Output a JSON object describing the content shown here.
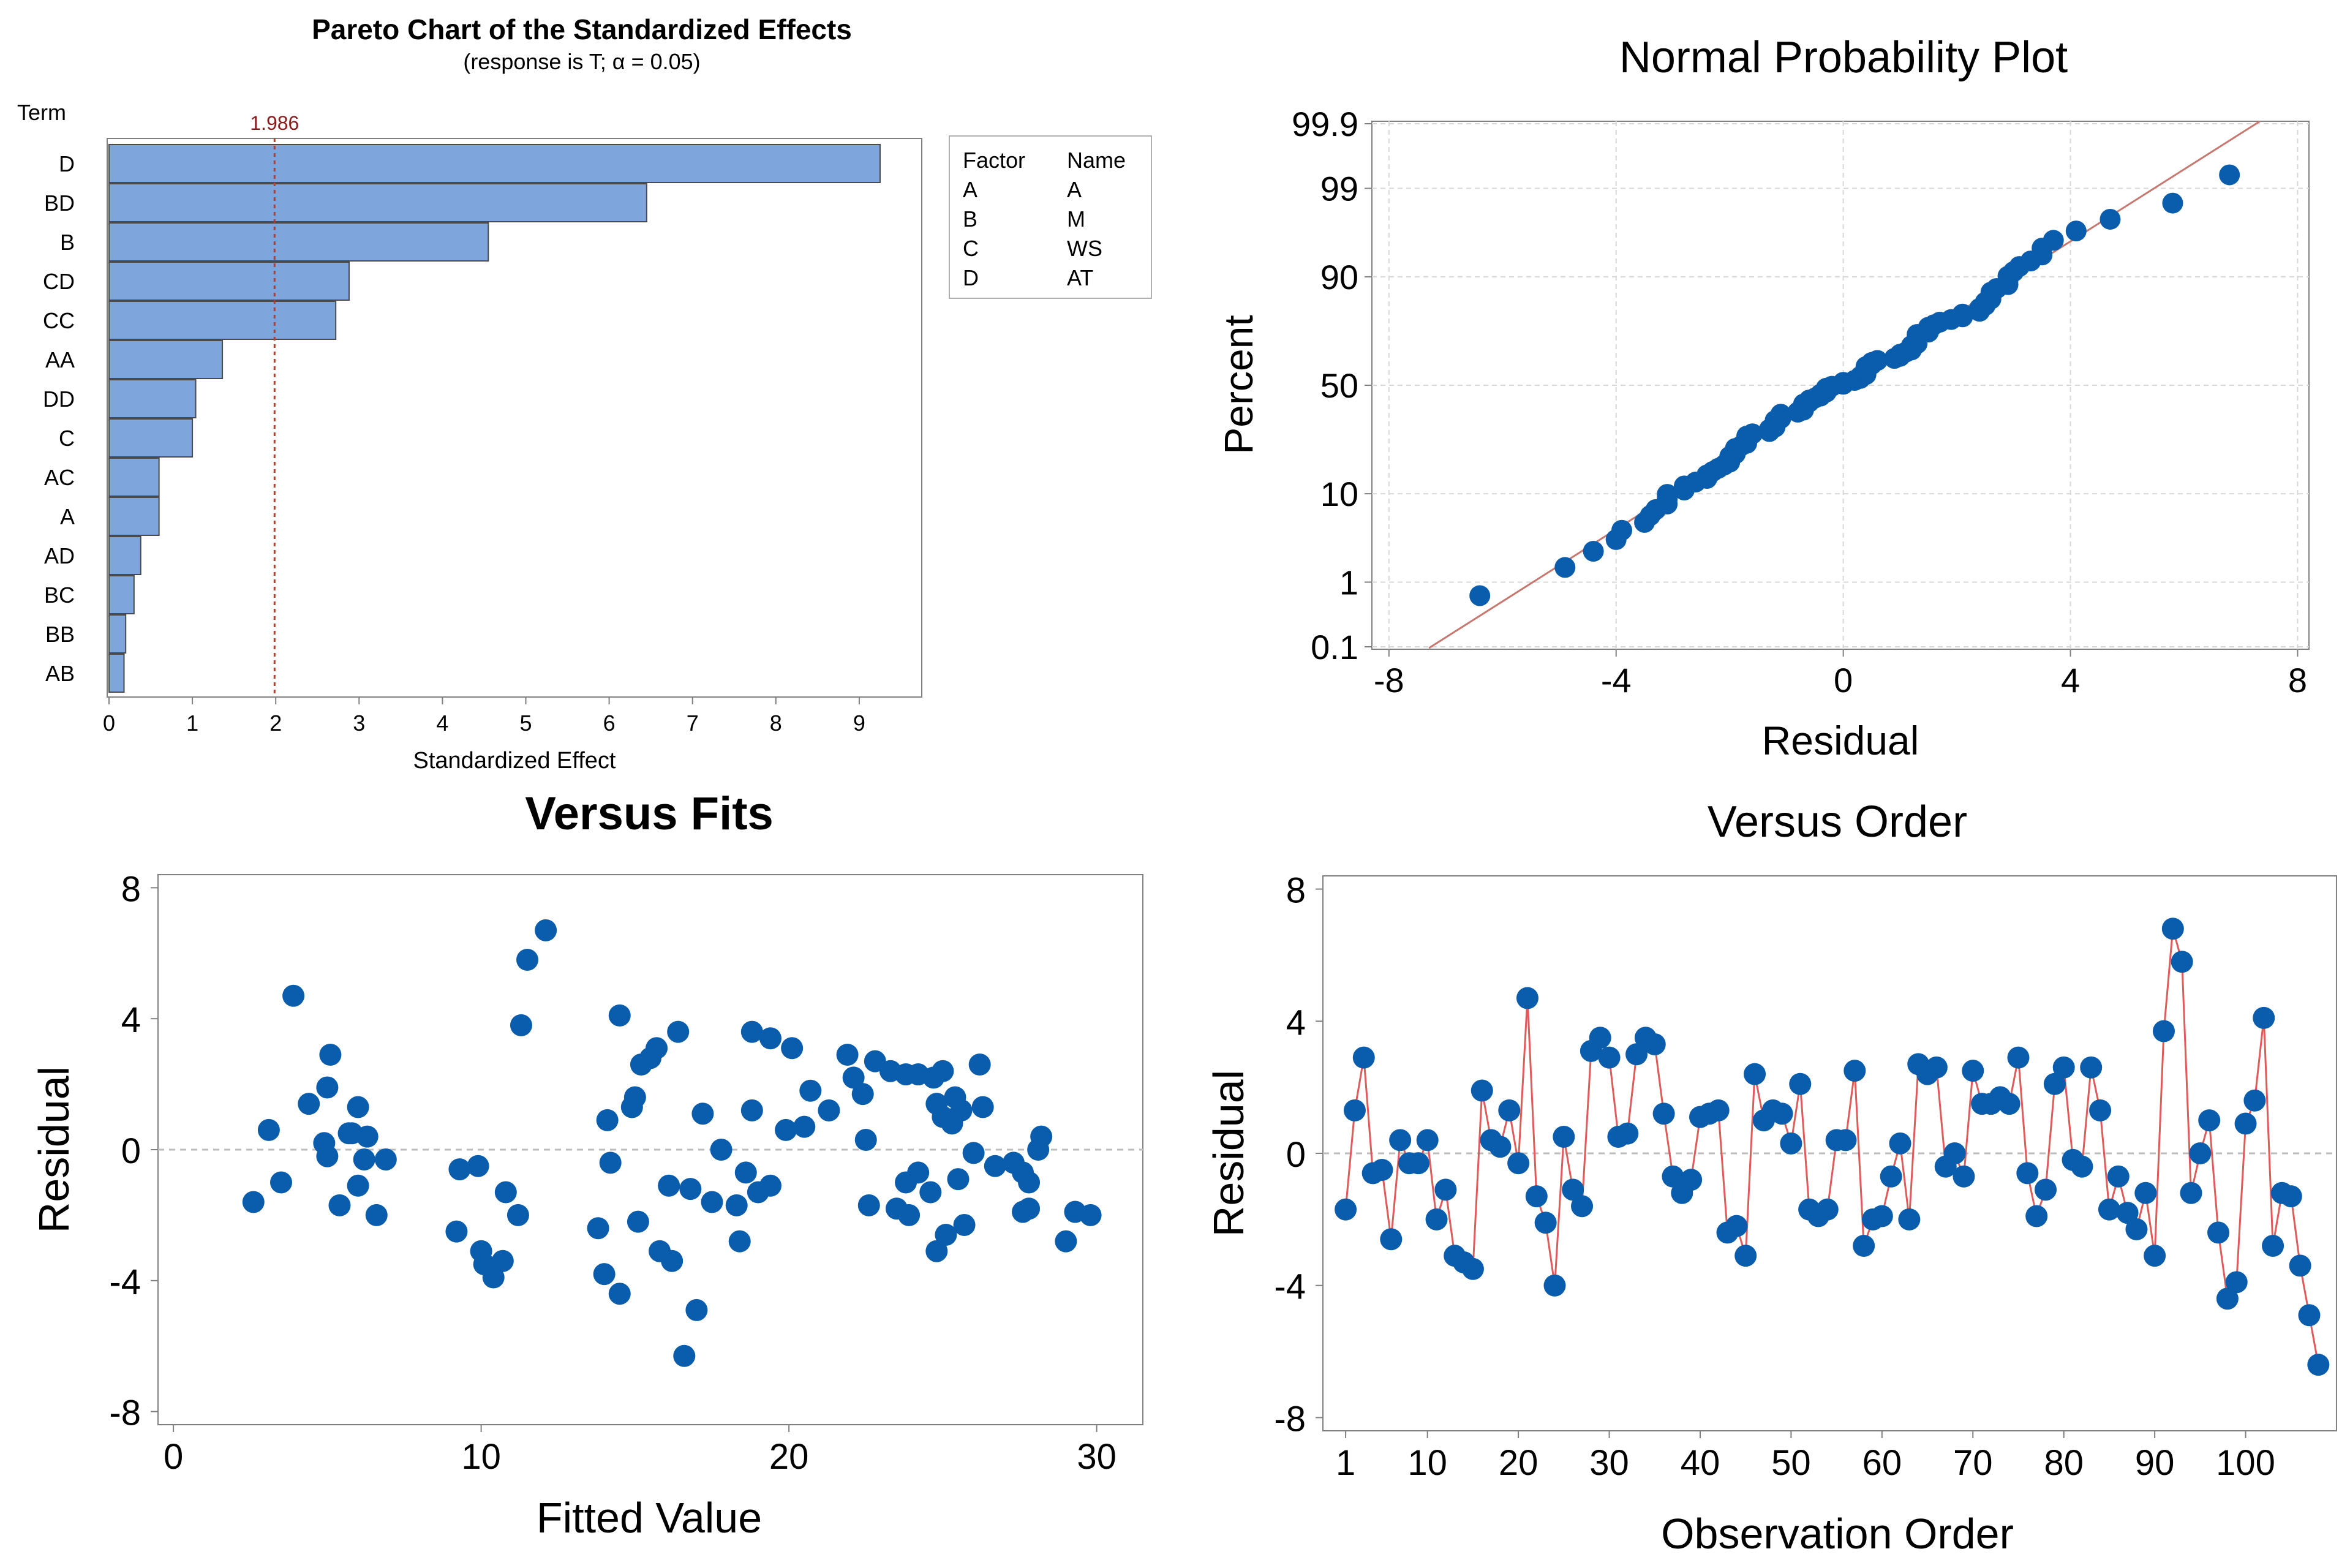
{
  "colors": {
    "bar_fill": "#7fa6dc",
    "bar_stroke": "#4a4a4a",
    "point": "#0a5cac",
    "ref_line": "#c0392b",
    "fit_line": "#c8776f",
    "connect_line": "#e05a5a",
    "grid": "#d8d8d8",
    "axis": "#808080",
    "text": "#000000",
    "ref_label": "#8b1a1a"
  },
  "chart_data": [
    {
      "type": "bar",
      "orientation": "horizontal",
      "title": "Pareto Chart of the Standardized Effects",
      "subtitle": "(response is T; α = 0.05)",
      "ylabel": "Term",
      "xlabel": "Standardized Effect",
      "categories": [
        "D",
        "BD",
        "B",
        "CD",
        "CC",
        "AA",
        "DD",
        "C",
        "AC",
        "A",
        "AD",
        "BC",
        "BB",
        "AB"
      ],
      "values": [
        9.25,
        6.45,
        4.55,
        2.88,
        2.72,
        1.36,
        1.04,
        1.0,
        0.6,
        0.6,
        0.38,
        0.3,
        0.2,
        0.18
      ],
      "xlim": [
        0,
        9.75
      ],
      "xticks": [
        0,
        1,
        2,
        3,
        4,
        5,
        6,
        7,
        8,
        9
      ],
      "reference_value": 1.986,
      "reference_label": "1.986",
      "legend": {
        "headers": [
          "Factor",
          "Name"
        ],
        "rows": [
          [
            "A",
            "A"
          ],
          [
            "B",
            "M"
          ],
          [
            "C",
            "WS"
          ],
          [
            "D",
            "AT"
          ]
        ]
      }
    },
    {
      "type": "scatter",
      "title": "Normal Probability Plot",
      "xlabel": "Residual",
      "ylabel": "Percent",
      "xlim": [
        -8.3,
        8.2
      ],
      "xticks": [
        -8,
        -4,
        0,
        4,
        8
      ],
      "yticks": [
        "0.1",
        "1",
        "10",
        "50",
        "90",
        "99",
        "99.9"
      ],
      "grid": true,
      "fit_line": true
    },
    {
      "type": "scatter",
      "title": "Versus Fits",
      "xlabel": "Fitted Value",
      "ylabel": "Residual",
      "xlim": [
        -0.5,
        31.5
      ],
      "ylim": [
        -8.4,
        8.4
      ],
      "xticks": [
        0,
        10,
        20,
        30
      ],
      "yticks": [
        -8,
        -4,
        0,
        4,
        8
      ],
      "reference_value": 0,
      "points": [
        [
          2.6,
          -1.6
        ],
        [
          3.1,
          0.6
        ],
        [
          3.5,
          -1.0
        ],
        [
          3.9,
          4.7
        ],
        [
          4.4,
          1.4
        ],
        [
          4.9,
          0.2
        ],
        [
          5.0,
          -0.2
        ],
        [
          5.0,
          1.9
        ],
        [
          5.1,
          2.9
        ],
        [
          5.4,
          -1.7
        ],
        [
          5.7,
          0.5
        ],
        [
          5.8,
          0.5
        ],
        [
          6.0,
          -1.1
        ],
        [
          6.0,
          1.3
        ],
        [
          6.2,
          -0.3
        ],
        [
          6.3,
          0.4
        ],
        [
          6.6,
          -2.0
        ],
        [
          6.9,
          -0.3
        ],
        [
          9.2,
          -2.5
        ],
        [
          9.3,
          -0.6
        ],
        [
          9.9,
          -0.5
        ],
        [
          10.0,
          -3.1
        ],
        [
          10.1,
          -3.5
        ],
        [
          10.4,
          -3.9
        ],
        [
          10.7,
          -3.4
        ],
        [
          10.8,
          -1.3
        ],
        [
          11.2,
          -2.0
        ],
        [
          11.3,
          3.8
        ],
        [
          11.5,
          5.8
        ],
        [
          12.1,
          6.7
        ],
        [
          13.8,
          -2.4
        ],
        [
          14.0,
          -3.8
        ],
        [
          14.1,
          0.9
        ],
        [
          14.2,
          -0.4
        ],
        [
          14.5,
          -4.4
        ],
        [
          14.5,
          4.1
        ],
        [
          14.9,
          1.3
        ],
        [
          15.0,
          1.6
        ],
        [
          15.1,
          -2.2
        ],
        [
          15.2,
          2.6
        ],
        [
          15.5,
          2.8
        ],
        [
          15.7,
          3.1
        ],
        [
          15.8,
          -3.1
        ],
        [
          16.1,
          -1.1
        ],
        [
          16.2,
          -3.4
        ],
        [
          16.4,
          3.6
        ],
        [
          16.6,
          -6.3
        ],
        [
          16.8,
          -1.2
        ],
        [
          17.0,
          -4.9
        ],
        [
          17.2,
          1.1
        ],
        [
          17.5,
          -1.6
        ],
        [
          17.8,
          0.0
        ],
        [
          18.3,
          -1.7
        ],
        [
          18.4,
          -2.8
        ],
        [
          18.6,
          -0.7
        ],
        [
          18.8,
          1.2
        ],
        [
          18.8,
          3.6
        ],
        [
          19.0,
          -1.3
        ],
        [
          19.4,
          3.4
        ],
        [
          19.4,
          -1.1
        ],
        [
          19.9,
          0.6
        ],
        [
          20.1,
          3.1
        ],
        [
          20.5,
          0.7
        ],
        [
          20.7,
          1.8
        ],
        [
          21.3,
          1.2
        ],
        [
          21.9,
          2.9
        ],
        [
          22.1,
          2.2
        ],
        [
          22.4,
          1.7
        ],
        [
          22.5,
          0.3
        ],
        [
          22.6,
          -1.7
        ],
        [
          22.8,
          2.7
        ],
        [
          23.3,
          2.4
        ],
        [
          23.5,
          -1.8
        ],
        [
          23.8,
          -1.0
        ],
        [
          23.8,
          2.3
        ],
        [
          23.9,
          -2.0
        ],
        [
          24.2,
          2.3
        ],
        [
          24.2,
          -0.7
        ],
        [
          24.6,
          -1.3
        ],
        [
          24.7,
          2.2
        ],
        [
          24.8,
          1.4
        ],
        [
          24.8,
          -3.1
        ],
        [
          25.0,
          2.4
        ],
        [
          25.0,
          1.0
        ],
        [
          25.1,
          -2.6
        ],
        [
          25.3,
          0.8
        ],
        [
          25.4,
          1.6
        ],
        [
          25.5,
          -0.9
        ],
        [
          25.6,
          1.2
        ],
        [
          25.7,
          -2.3
        ],
        [
          26.0,
          -0.1
        ],
        [
          26.2,
          2.6
        ],
        [
          26.3,
          1.3
        ],
        [
          26.7,
          -0.5
        ],
        [
          27.3,
          -0.4
        ],
        [
          27.6,
          -1.9
        ],
        [
          27.6,
          -0.7
        ],
        [
          27.8,
          -1.0
        ],
        [
          27.8,
          -1.8
        ],
        [
          28.1,
          0.0
        ],
        [
          28.2,
          0.4
        ],
        [
          29.0,
          -2.8
        ],
        [
          29.3,
          -1.9
        ],
        [
          29.8,
          -2.0
        ]
      ]
    },
    {
      "type": "line",
      "title": "Versus Order",
      "xlabel": "Observation Order",
      "ylabel": "Residual",
      "xlim": [
        -1.5,
        110.0
      ],
      "ylim": [
        -8.4,
        8.4
      ],
      "xticks": [
        1,
        10,
        20,
        30,
        40,
        50,
        60,
        70,
        80,
        90,
        100
      ],
      "yticks": [
        -8,
        -4,
        0,
        4,
        8
      ],
      "reference_value": 0,
      "x": [
        1,
        2,
        3,
        4,
        5,
        6,
        7,
        8,
        9,
        10,
        11,
        12,
        13,
        14,
        15,
        16,
        17,
        18,
        19,
        20,
        21,
        22,
        23,
        24,
        25,
        26,
        27,
        28,
        29,
        30,
        31,
        32,
        33,
        34,
        35,
        36,
        37,
        38,
        39,
        40,
        41,
        42,
        43,
        44,
        45,
        46,
        47,
        48,
        49,
        50,
        51,
        52,
        53,
        54,
        55,
        56,
        57,
        58,
        59,
        60,
        61,
        62,
        63,
        64,
        65,
        66,
        67,
        68,
        69,
        70,
        71,
        72,
        73,
        74,
        75,
        76,
        77,
        78,
        79,
        80,
        81,
        82,
        83,
        84,
        85,
        86,
        87,
        88,
        89,
        90,
        91,
        92,
        93,
        94,
        95,
        96,
        97,
        98,
        99,
        100,
        101,
        102,
        103,
        104,
        105,
        106,
        107,
        108
      ],
      "values": [
        -1.7,
        1.3,
        2.9,
        -0.6,
        -0.5,
        -2.6,
        0.4,
        -0.3,
        -0.3,
        0.4,
        -2.0,
        -1.1,
        -3.1,
        -3.3,
        -3.5,
        1.9,
        0.4,
        0.2,
        1.3,
        -0.3,
        4.7,
        -1.3,
        -2.1,
        -4.0,
        0.5,
        -1.1,
        -1.6,
        3.1,
        3.5,
        2.9,
        0.5,
        0.6,
        3.0,
        3.5,
        3.3,
        1.2,
        -0.7,
        -1.2,
        -0.8,
        1.1,
        1.2,
        1.3,
        -2.4,
        -2.2,
        -3.1,
        2.4,
        1.0,
        1.3,
        1.2,
        0.3,
        2.1,
        -1.7,
        -1.9,
        -1.7,
        0.4,
        0.4,
        2.5,
        -2.8,
        -2.0,
        -1.9,
        -0.7,
        0.3,
        -2.0,
        2.7,
        2.4,
        2.6,
        -0.4,
        0.0,
        -0.7,
        2.5,
        1.5,
        1.5,
        1.7,
        1.5,
        2.9,
        -0.6,
        -1.9,
        -1.1,
        2.1,
        2.6,
        -0.2,
        -0.4,
        2.6,
        1.3,
        -1.7,
        -0.7,
        -1.8,
        -2.3,
        -1.2,
        -3.1,
        3.7,
        6.8,
        5.8,
        -1.2,
        0.0,
        1.0,
        -2.4,
        -4.4,
        -3.9,
        0.9,
        1.6,
        4.1,
        -2.8,
        -1.2,
        -1.3,
        -3.4,
        -4.9,
        -6.4
      ]
    }
  ]
}
